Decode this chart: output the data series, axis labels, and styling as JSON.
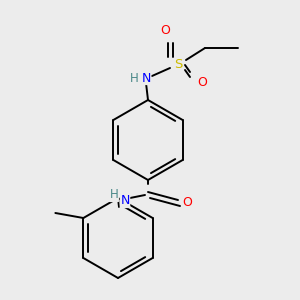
{
  "background_color": "#ececec",
  "atom_colors": {
    "C": "#000000",
    "H": "#4a8888",
    "N": "#0000ff",
    "O": "#ff0000",
    "S": "#ccbb00"
  },
  "bond_color": "#000000",
  "bond_width": 1.4,
  "figsize": [
    3.0,
    3.0
  ],
  "dpi": 100
}
